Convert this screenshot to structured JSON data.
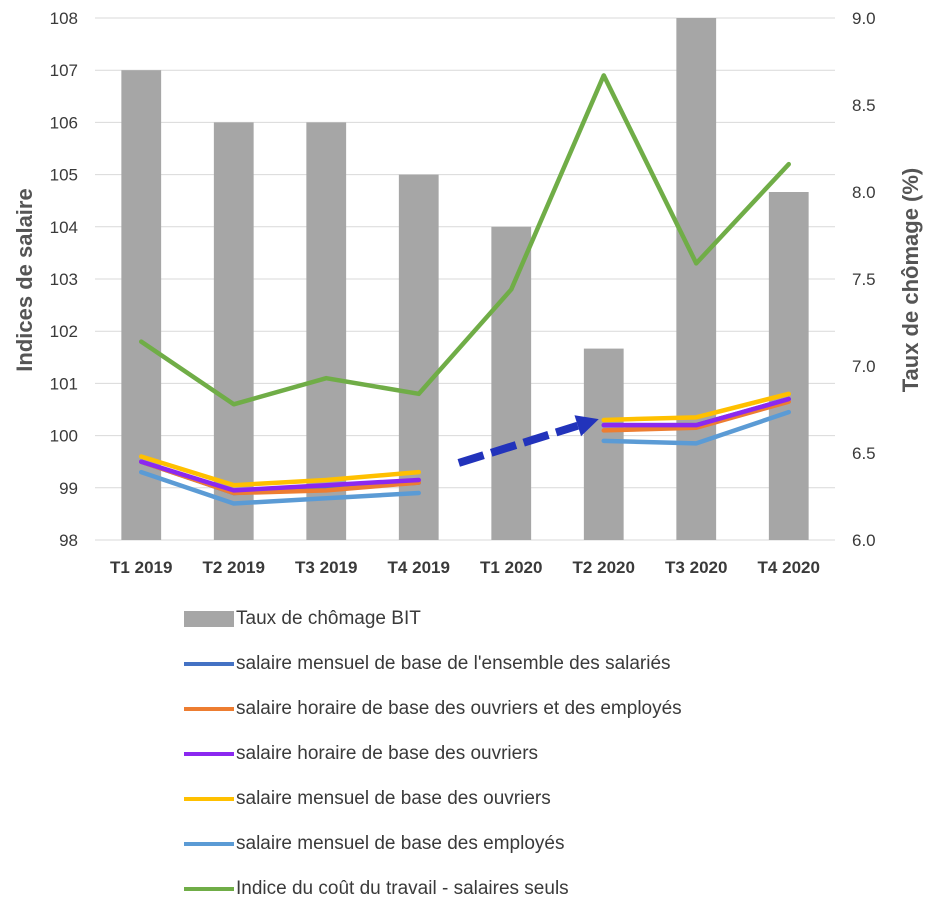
{
  "chart_data": {
    "type": "bar",
    "categories": [
      "T1 2019",
      "T2 2019",
      "T3 2019",
      "T4 2019",
      "T1 2020",
      "T2 2020",
      "T3 2020",
      "T4 2020"
    ],
    "ylabel": "Indices de salaire",
    "y2label": "Taux de chômage (%)",
    "ylim": [
      98,
      108
    ],
    "y2lim": [
      6.0,
      9.0
    ],
    "yticks": [
      "98",
      "99",
      "100",
      "101",
      "102",
      "103",
      "104",
      "105",
      "106",
      "107",
      "108"
    ],
    "y2ticks": [
      "6.0",
      "6.5",
      "7.0",
      "7.5",
      "8.0",
      "8.5",
      "9.0"
    ],
    "grid": true,
    "legend_position": "bottom",
    "bars": {
      "name": "Taux de chômage BIT",
      "axis": "right",
      "color": "#a6a6a6",
      "values": [
        8.7,
        8.4,
        8.4,
        8.1,
        7.8,
        7.1,
        9.0,
        8.0
      ]
    },
    "series": [
      {
        "name": "salaire mensuel de base de l'ensemble des salariés",
        "axis": "left",
        "color": "#4472c4",
        "values": [
          99.5,
          98.9,
          99.0,
          99.1,
          null,
          100.2,
          100.2,
          100.7
        ]
      },
      {
        "name": "salaire horaire de base des ouvriers et des employés",
        "axis": "left",
        "color": "#ed7d31",
        "values": [
          99.5,
          98.9,
          98.95,
          99.1,
          null,
          100.1,
          100.15,
          100.65
        ]
      },
      {
        "name": "salaire horaire de base des ouvriers",
        "axis": "left",
        "color": "#8b28f0",
        "values": [
          99.5,
          98.95,
          99.05,
          99.15,
          null,
          100.2,
          100.2,
          100.7
        ]
      },
      {
        "name": "salaire mensuel de base des ouvriers",
        "axis": "left",
        "color": "#ffc000",
        "values": [
          99.6,
          99.05,
          99.15,
          99.3,
          null,
          100.3,
          100.35,
          100.8
        ]
      },
      {
        "name": "salaire mensuel de base des employés",
        "axis": "left",
        "color": "#5b9bd5",
        "values": [
          99.3,
          98.7,
          98.8,
          98.9,
          null,
          99.9,
          99.85,
          100.45
        ]
      },
      {
        "name": "Indice du coût du travail - salaires seuls",
        "axis": "left",
        "color": "#70ad47",
        "values": [
          101.8,
          100.6,
          101.1,
          100.8,
          102.8,
          106.9,
          103.3,
          105.2
        ]
      }
    ],
    "annotations": [
      {
        "type": "arrow",
        "color": "#2233bb",
        "from": [
          "T4 2019",
          99.4
        ],
        "to": [
          "T2 2020",
          100.2
        ]
      }
    ]
  }
}
